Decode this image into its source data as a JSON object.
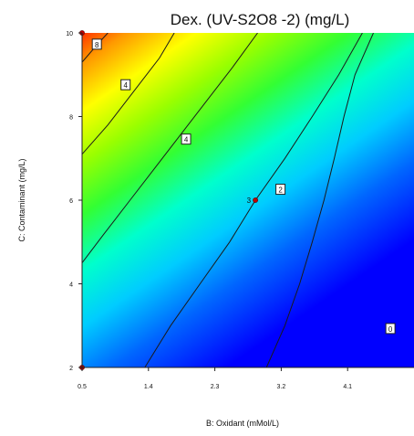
{
  "chart_data": {
    "type": "contour",
    "title": "Dex. (UV-S2O8 -2) (mg/L)",
    "xlabel": "B: Oxidant (mMol/L)",
    "ylabel": "C: Contaminant (mg/L)",
    "xlim": [
      0.5,
      5.0
    ],
    "ylim": [
      2,
      10
    ],
    "xticks": [
      "0.5",
      "1.4",
      "2.3",
      "3.2",
      "4.1"
    ],
    "yticks": [
      "2",
      "4",
      "6",
      "8",
      "10"
    ],
    "xtick_values": [
      0.5,
      1.4,
      2.3,
      3.2,
      4.1
    ],
    "ytick_values": [
      2,
      4,
      6,
      8,
      10
    ],
    "colormap": [
      "#0000ff",
      "#0066ff",
      "#00ccff",
      "#00ffcc",
      "#33ff33",
      "#99ff00",
      "#ffff00",
      "#ff9900",
      "#ff3300"
    ],
    "contour_lines": [
      {
        "points": [
          [
            3.0,
            2.0
          ],
          [
            3.25,
            3.0
          ],
          [
            3.45,
            4.0
          ],
          [
            3.62,
            5.0
          ],
          [
            3.78,
            6.0
          ],
          [
            3.92,
            7.0
          ],
          [
            4.05,
            8.0
          ],
          [
            4.2,
            9.0
          ],
          [
            4.45,
            10.0
          ]
        ]
      },
      {
        "points": [
          [
            1.35,
            2.0
          ],
          [
            1.7,
            3.0
          ],
          [
            2.1,
            4.0
          ],
          [
            2.5,
            5.0
          ],
          [
            2.85,
            6.0
          ],
          [
            3.25,
            7.0
          ],
          [
            3.62,
            8.0
          ],
          [
            3.98,
            9.0
          ],
          [
            4.3,
            10.0
          ]
        ]
      },
      {
        "points": [
          [
            0.5,
            4.5
          ],
          [
            0.8,
            5.2
          ],
          [
            1.15,
            6.0
          ],
          [
            1.5,
            6.8
          ],
          [
            1.85,
            7.6
          ],
          [
            2.2,
            8.4
          ],
          [
            2.55,
            9.2
          ],
          [
            2.88,
            10.0
          ]
        ]
      },
      {
        "points": [
          [
            0.5,
            7.1
          ],
          [
            0.85,
            7.8
          ],
          [
            1.2,
            8.6
          ],
          [
            1.55,
            9.4
          ],
          [
            1.75,
            10.0
          ]
        ]
      },
      {
        "points": [
          [
            0.5,
            9.3
          ],
          [
            0.72,
            9.75
          ],
          [
            0.85,
            10.0
          ]
        ]
      }
    ],
    "contour_labels": [
      {
        "text": "2",
        "x": 3.19,
        "y": 6.25
      },
      {
        "text": "4",
        "x": 1.91,
        "y": 7.45
      },
      {
        "text": "4",
        "x": 1.09,
        "y": 8.75
      },
      {
        "text": "8",
        "x": 0.7,
        "y": 9.72
      },
      {
        "text": "0",
        "x": 4.68,
        "y": 2.92
      }
    ],
    "design_points": [
      {
        "x": 0.5,
        "y": 10.0,
        "label": ""
      },
      {
        "x": 0.5,
        "y": 2.0,
        "label": ""
      },
      {
        "x": 2.85,
        "y": 6.0,
        "label": "3"
      }
    ]
  }
}
